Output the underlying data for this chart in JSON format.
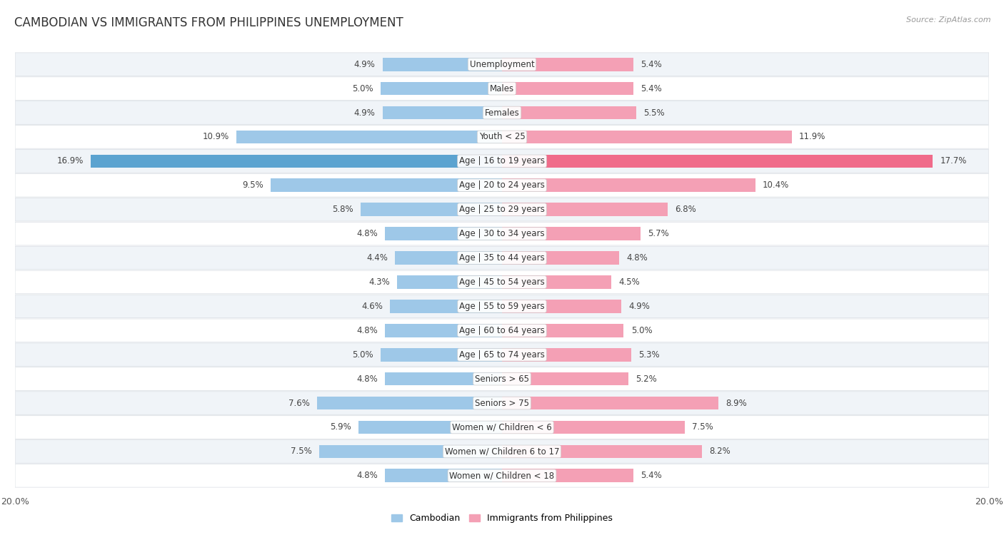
{
  "title": "CAMBODIAN VS IMMIGRANTS FROM PHILIPPINES UNEMPLOYMENT",
  "source": "Source: ZipAtlas.com",
  "categories": [
    "Unemployment",
    "Males",
    "Females",
    "Youth < 25",
    "Age | 16 to 19 years",
    "Age | 20 to 24 years",
    "Age | 25 to 29 years",
    "Age | 30 to 34 years",
    "Age | 35 to 44 years",
    "Age | 45 to 54 years",
    "Age | 55 to 59 years",
    "Age | 60 to 64 years",
    "Age | 65 to 74 years",
    "Seniors > 65",
    "Seniors > 75",
    "Women w/ Children < 6",
    "Women w/ Children 6 to 17",
    "Women w/ Children < 18"
  ],
  "cambodian": [
    4.9,
    5.0,
    4.9,
    10.9,
    16.9,
    9.5,
    5.8,
    4.8,
    4.4,
    4.3,
    4.6,
    4.8,
    5.0,
    4.8,
    7.6,
    5.9,
    7.5,
    4.8
  ],
  "philippines": [
    5.4,
    5.4,
    5.5,
    11.9,
    17.7,
    10.4,
    6.8,
    5.7,
    4.8,
    4.5,
    4.9,
    5.0,
    5.3,
    5.2,
    8.9,
    7.5,
    8.2,
    5.4
  ],
  "cambodian_color": "#9ec8e8",
  "philippines_color": "#f4a0b5",
  "highlight_cambodian_color": "#5ba3d0",
  "highlight_philippines_color": "#f06b8a",
  "row_bg_odd": "#f0f4f8",
  "row_bg_even": "#ffffff",
  "row_border": "#d8dde3",
  "axis_limit": 20.0,
  "legend_cambodian": "Cambodian",
  "legend_philippines": "Immigrants from Philippines",
  "title_fontsize": 12,
  "value_fontsize": 8.5,
  "cat_fontsize": 8.5,
  "highlight_indices": [
    4
  ]
}
